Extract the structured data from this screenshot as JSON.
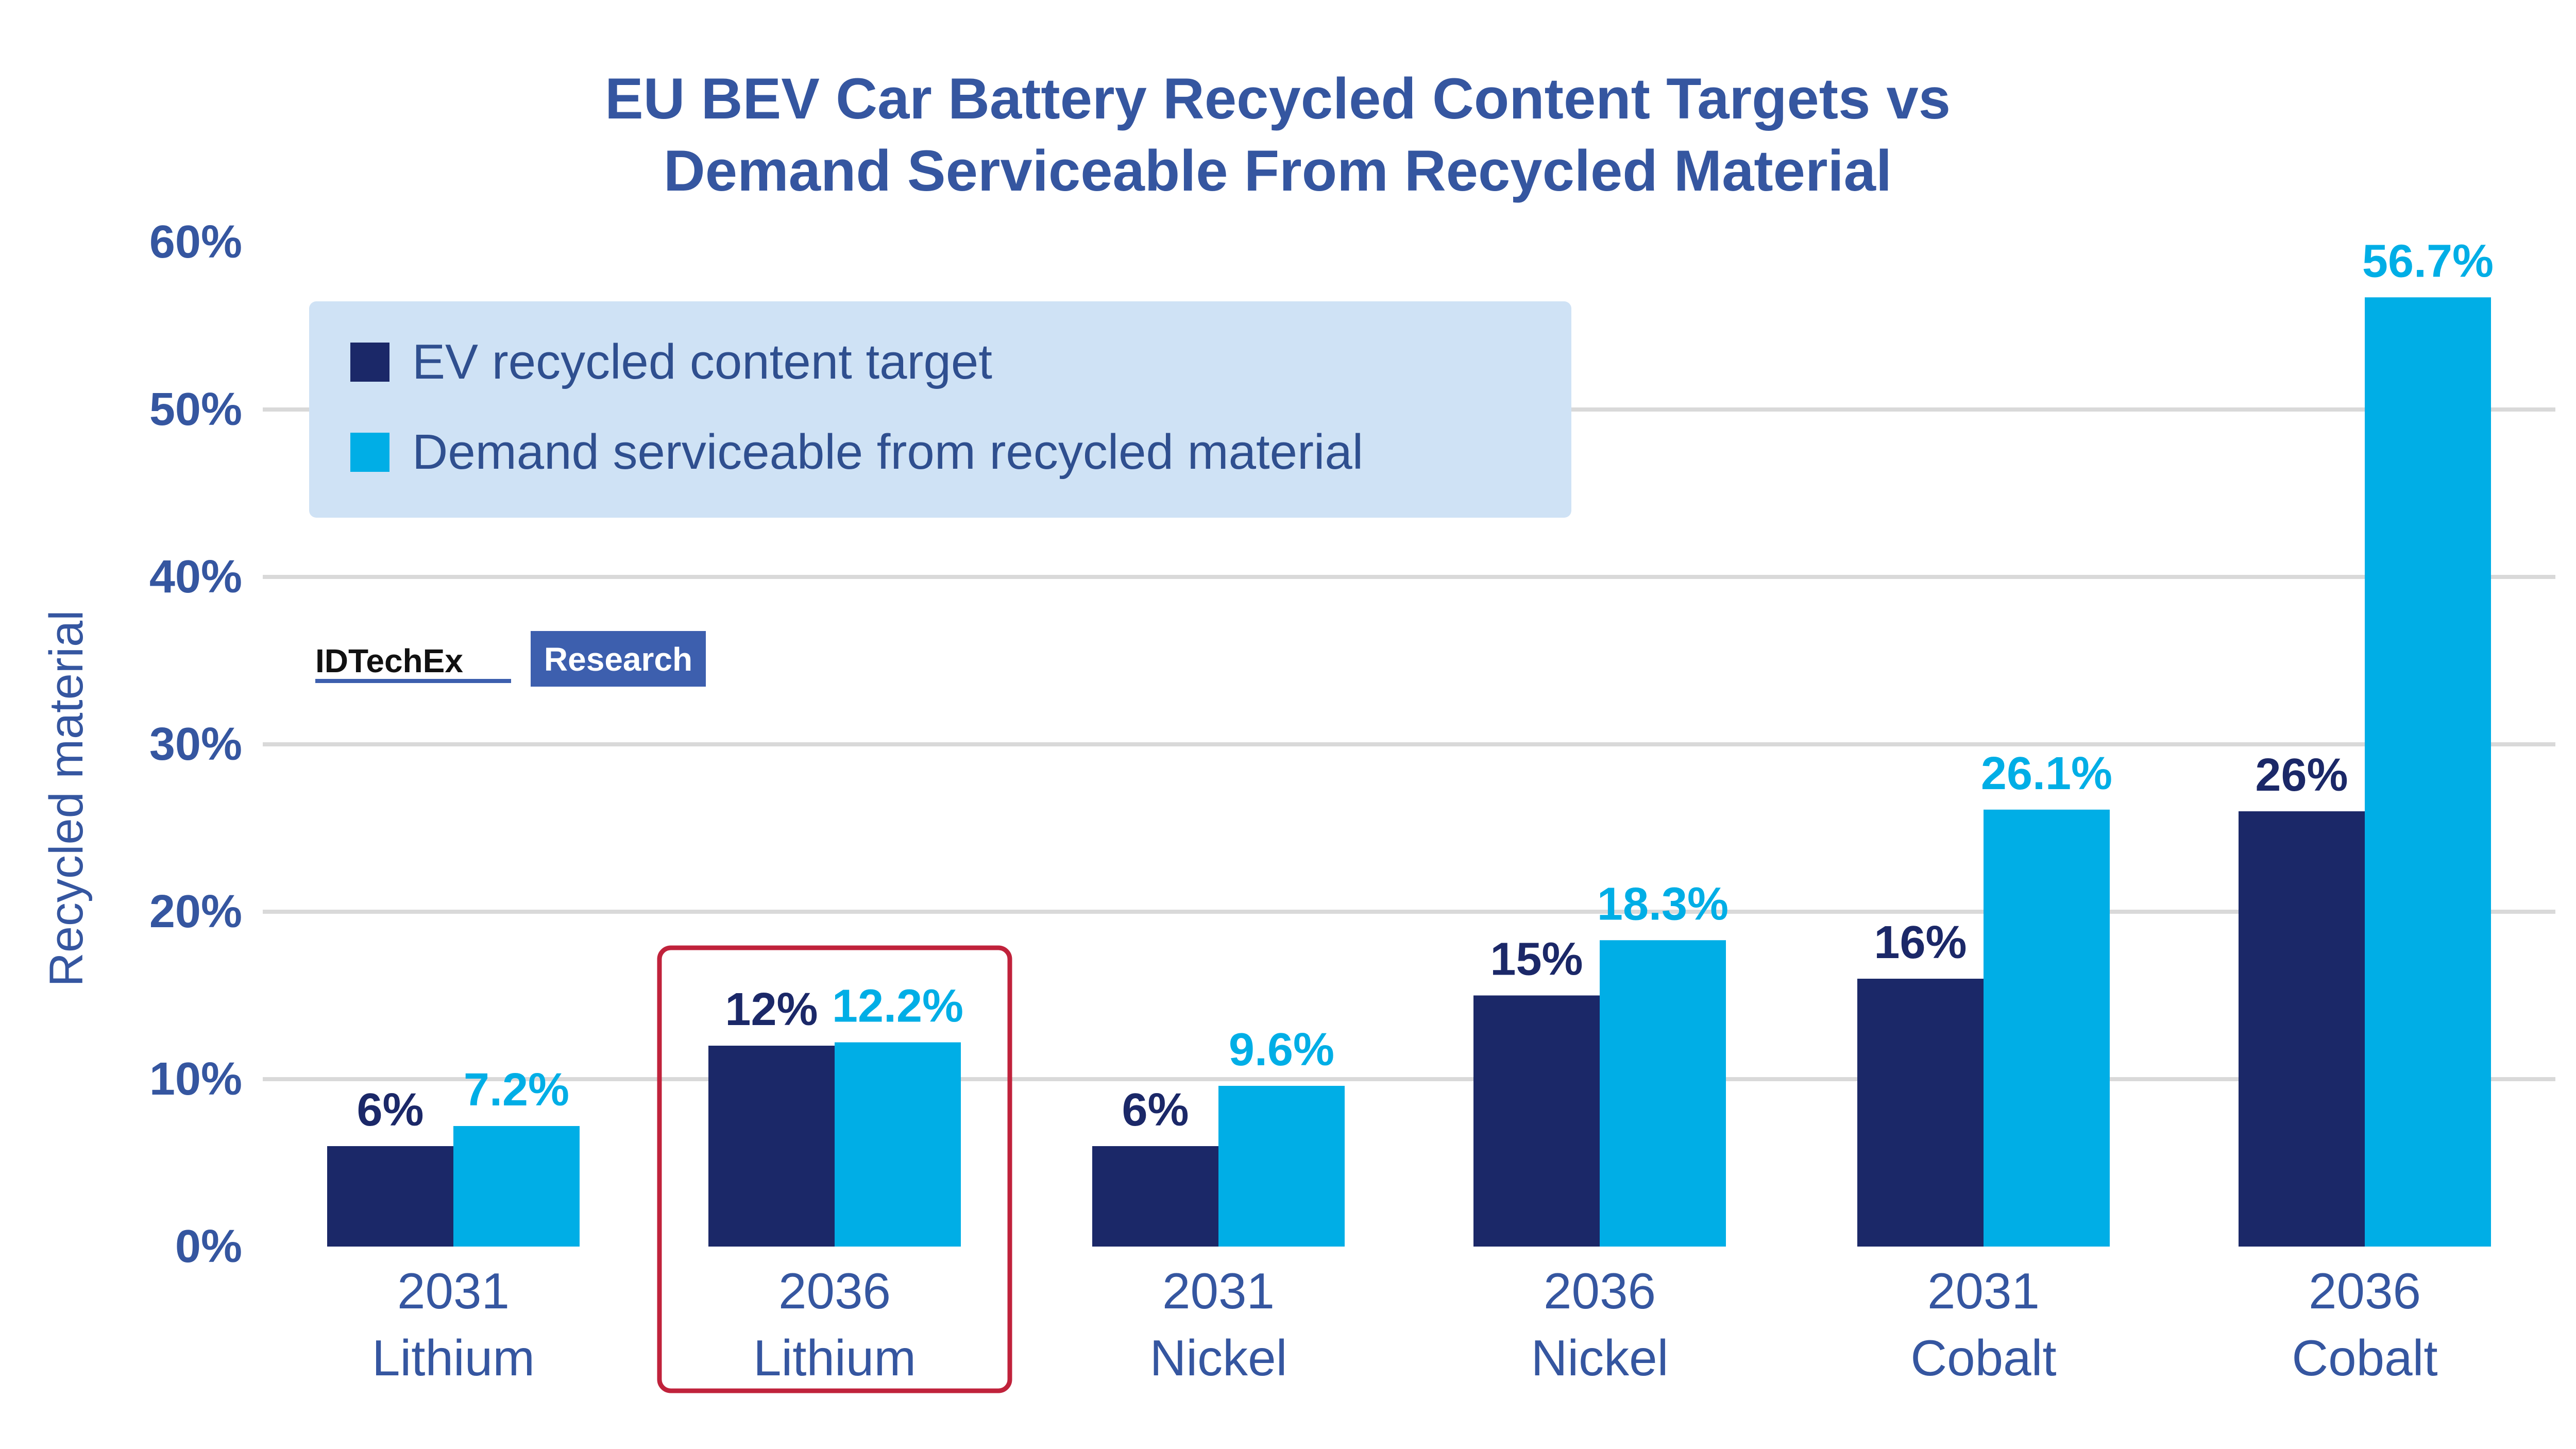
{
  "colors": {
    "target": "#1b2868",
    "demand": "#00aee6",
    "title": "#3556a0",
    "grid": "#d9d9d9",
    "legend_bg": "#cfe2f5",
    "highlight": "#c0223b",
    "logo_blue": "#3d5fae"
  },
  "logo": {
    "left_text": "IDTechEx",
    "right_text": "Research"
  },
  "highlight_box": {
    "category_index": 1
  },
  "chart_data": {
    "type": "bar",
    "title": "EU BEV Car Battery Recycled Content Targets vs Demand Serviceable From Recycled Material",
    "title_lines": [
      "EU BEV Car Battery Recycled Content Targets vs",
      "Demand Serviceable From Recycled Material"
    ],
    "ylabel": "Recycled material",
    "xlabel": "",
    "ylim": [
      0,
      60
    ],
    "yticks": [
      "0%",
      "10%",
      "20%",
      "30%",
      "40%",
      "50%",
      "60%"
    ],
    "ytick_values": [
      0,
      10,
      20,
      30,
      40,
      50,
      60
    ],
    "grid": true,
    "legend_position": "top-left",
    "categories": [
      [
        "2031",
        "Lithium"
      ],
      [
        "2036",
        "Lithium"
      ],
      [
        "2031",
        "Nickel"
      ],
      [
        "2036",
        "Nickel"
      ],
      [
        "2031",
        "Cobalt"
      ],
      [
        "2036",
        "Cobalt"
      ]
    ],
    "series": [
      {
        "name": "EV recycled content target",
        "values": [
          6,
          12,
          6,
          15,
          16,
          26
        ],
        "labels": [
          "6%",
          "12%",
          "6%",
          "15%",
          "16%",
          "26%"
        ]
      },
      {
        "name": "Demand serviceable from recycled material",
        "values": [
          7.2,
          12.2,
          9.6,
          18.3,
          26.1,
          56.7
        ],
        "labels": [
          "7.2%",
          "12.2%",
          "9.6%",
          "18.3%",
          "26.1%",
          "56.7%"
        ]
      }
    ]
  }
}
